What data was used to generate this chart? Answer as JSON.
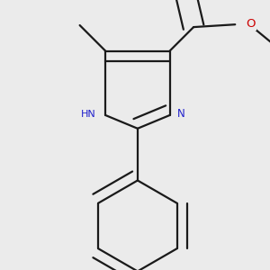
{
  "bg_color": "#ebebeb",
  "bond_color": "#1a1a1a",
  "nitrogen_color": "#2020cc",
  "oxygen_color": "#cc0000",
  "line_width": 1.6,
  "doffset": 0.04,
  "figsize": [
    3.0,
    3.0
  ],
  "dpi": 100,
  "xlim": [
    -0.52,
    0.52
  ],
  "ylim": [
    -0.58,
    0.46
  ]
}
